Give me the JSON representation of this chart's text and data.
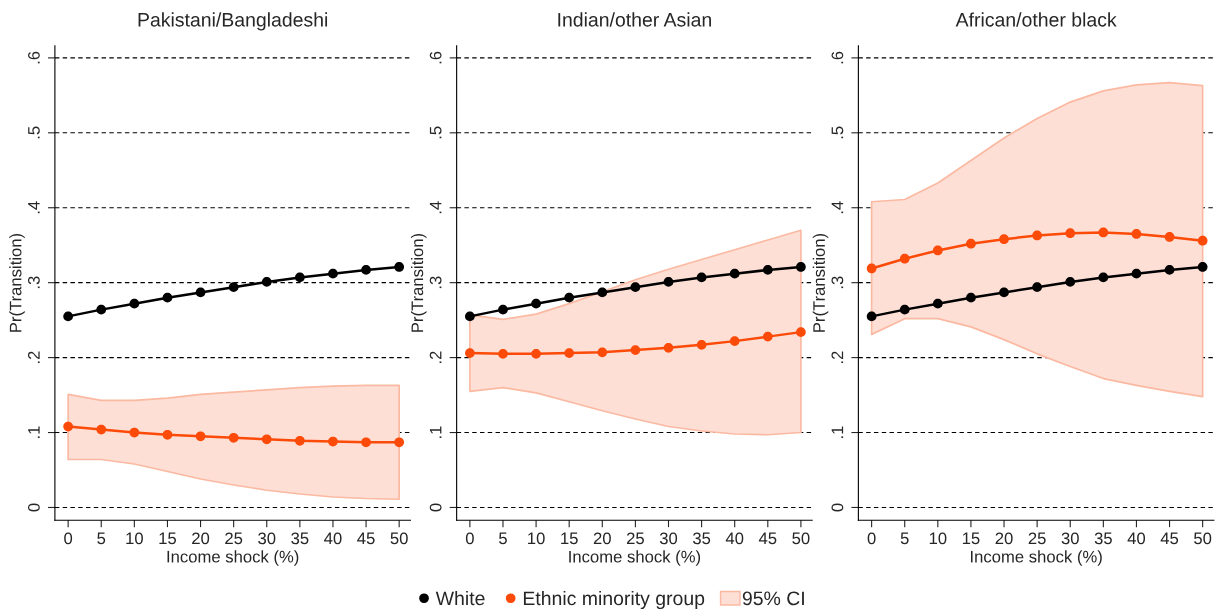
{
  "chart_data": [
    {
      "type": "line",
      "title": "Pakistani/Bangladeshi",
      "xlabel": "Income shock (%)",
      "ylabel": "Pr(Transition)",
      "x": [
        0,
        5,
        10,
        15,
        20,
        25,
        30,
        35,
        40,
        45,
        50
      ],
      "xlim": [
        -2,
        51.7
      ],
      "xticks": [
        0,
        5,
        10,
        15,
        20,
        25,
        30,
        35,
        40,
        45,
        50
      ],
      "ylim": [
        -0.017,
        0.616
      ],
      "yticks": [
        {
          "value": 0,
          "label": "0"
        },
        {
          "value": 0.1,
          "label": ".1"
        },
        {
          "value": 0.2,
          "label": ".2"
        },
        {
          "value": 0.3,
          "label": ".3"
        },
        {
          "value": 0.4,
          "label": ".4"
        },
        {
          "value": 0.5,
          "label": ".5"
        },
        {
          "value": 0.6,
          "label": ".6"
        }
      ],
      "grid": "y",
      "marker": "circle",
      "line_style": "solid",
      "series": [
        {
          "color": "#000000",
          "values": [
            0.255,
            0.264,
            0.272,
            0.28,
            0.287,
            0.294,
            0.301,
            0.307,
            0.312,
            0.317,
            0.321
          ]
        },
        {
          "color": "#fc4a08",
          "values": [
            0.108,
            0.104,
            0.1,
            0.097,
            0.095,
            0.093,
            0.091,
            0.089,
            0.088,
            0.087,
            0.087
          ],
          "lower": [
            0.064,
            0.064,
            0.058,
            0.048,
            0.038,
            0.03,
            0.023,
            0.018,
            0.014,
            0.012,
            0.011
          ],
          "upper": [
            0.151,
            0.143,
            0.143,
            0.146,
            0.151,
            0.154,
            0.157,
            0.16,
            0.162,
            0.163,
            0.163
          ]
        }
      ]
    },
    {
      "type": "line",
      "title": "Indian/other Asian",
      "xlabel": "Income shock (%)",
      "ylabel": "Pr(Transition)",
      "x": [
        0,
        5,
        10,
        15,
        20,
        25,
        30,
        35,
        40,
        45,
        50
      ],
      "xlim": [
        -2,
        51.7
      ],
      "xticks": [
        0,
        5,
        10,
        15,
        20,
        25,
        30,
        35,
        40,
        45,
        50
      ],
      "ylim": [
        -0.017,
        0.616
      ],
      "yticks": [
        {
          "value": 0,
          "label": "0"
        },
        {
          "value": 0.1,
          "label": ".1"
        },
        {
          "value": 0.2,
          "label": ".2"
        },
        {
          "value": 0.3,
          "label": ".3"
        },
        {
          "value": 0.4,
          "label": ".4"
        },
        {
          "value": 0.5,
          "label": ".5"
        },
        {
          "value": 0.6,
          "label": ".6"
        }
      ],
      "grid": "y",
      "marker": "circle",
      "line_style": "solid",
      "legend": "bottom",
      "annotations": [
        "95% CI"
      ],
      "series": [
        {
          "name": "White",
          "color": "#000000",
          "values": [
            0.255,
            0.264,
            0.272,
            0.28,
            0.287,
            0.294,
            0.301,
            0.307,
            0.312,
            0.317,
            0.321
          ]
        },
        {
          "name": "Ethnic minority group",
          "color": "#fc4a08",
          "values": [
            0.206,
            0.205,
            0.205,
            0.206,
            0.207,
            0.21,
            0.213,
            0.217,
            0.222,
            0.228,
            0.234
          ],
          "lower": [
            0.155,
            0.16,
            0.153,
            0.141,
            0.129,
            0.118,
            0.108,
            0.102,
            0.098,
            0.097,
            0.1
          ],
          "upper": [
            0.257,
            0.251,
            0.258,
            0.272,
            0.288,
            0.304,
            0.318,
            0.331,
            0.344,
            0.357,
            0.37
          ]
        }
      ]
    },
    {
      "type": "line",
      "title": "African/other black",
      "xlabel": "Income shock (%)",
      "ylabel": "Pr(Transition)",
      "x": [
        0,
        5,
        10,
        15,
        20,
        25,
        30,
        35,
        40,
        45,
        50
      ],
      "xlim": [
        -2,
        51.7
      ],
      "xticks": [
        0,
        5,
        10,
        15,
        20,
        25,
        30,
        35,
        40,
        45,
        50
      ],
      "ylim": [
        -0.017,
        0.616
      ],
      "yticks": [
        {
          "value": 0,
          "label": "0"
        },
        {
          "value": 0.1,
          "label": ".1"
        },
        {
          "value": 0.2,
          "label": ".2"
        },
        {
          "value": 0.3,
          "label": ".3"
        },
        {
          "value": 0.4,
          "label": ".4"
        },
        {
          "value": 0.5,
          "label": ".5"
        },
        {
          "value": 0.6,
          "label": ".6"
        }
      ],
      "grid": "y",
      "marker": "circle",
      "line_style": "solid",
      "series": [
        {
          "color": "#000000",
          "values": [
            0.255,
            0.264,
            0.272,
            0.28,
            0.287,
            0.294,
            0.301,
            0.307,
            0.312,
            0.317,
            0.321
          ]
        },
        {
          "color": "#fc4a08",
          "values": [
            0.319,
            0.332,
            0.343,
            0.352,
            0.358,
            0.363,
            0.366,
            0.367,
            0.365,
            0.361,
            0.356
          ],
          "lower": [
            0.231,
            0.252,
            0.252,
            0.241,
            0.224,
            0.205,
            0.188,
            0.172,
            0.163,
            0.155,
            0.148
          ],
          "upper": [
            0.408,
            0.411,
            0.433,
            0.463,
            0.493,
            0.519,
            0.541,
            0.556,
            0.564,
            0.567,
            0.563
          ]
        }
      ]
    }
  ]
}
